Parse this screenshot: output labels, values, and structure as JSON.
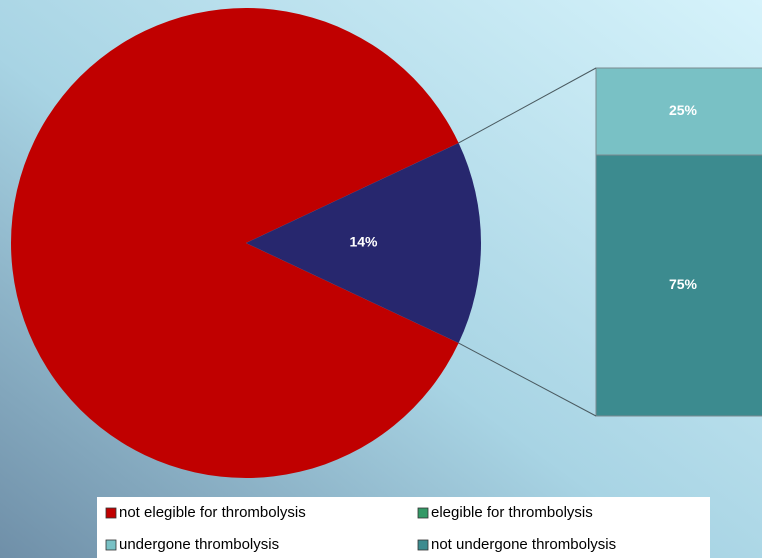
{
  "chart_data": {
    "type": "pie_of_bar",
    "pie": {
      "categories": [
        "not elegible for thrombolysis",
        "elegible for thrombolysis"
      ],
      "values": [
        86,
        14
      ],
      "value_labels": [
        null,
        "14%"
      ],
      "colors": [
        "#c00000",
        "#27276e"
      ],
      "legend_colors": [
        "#c00000",
        "#339966"
      ]
    },
    "bar": {
      "categories": [
        "undergone thrombolysis",
        "not undergone thrombolysis"
      ],
      "values": [
        25,
        75
      ],
      "value_labels": [
        "25%",
        "75%"
      ],
      "colors": [
        "#79c1c5",
        "#3c8b8f"
      ],
      "legend_colors": [
        "#79c1c5",
        "#3c8b8f"
      ]
    }
  }
}
